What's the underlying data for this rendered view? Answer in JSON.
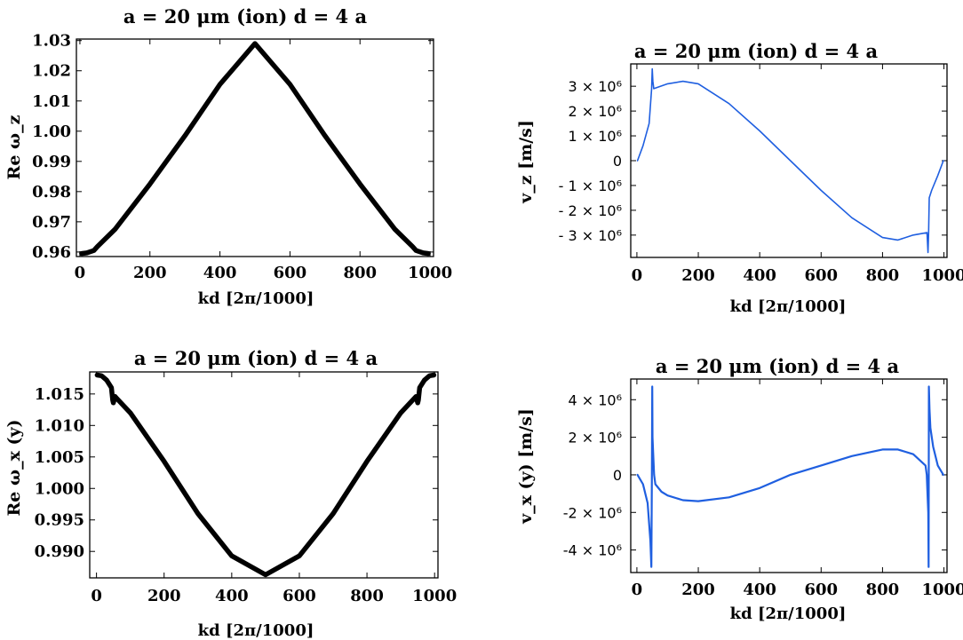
{
  "chart_data": [
    {
      "id": "p1",
      "type": "line",
      "title": "a = 20 μm (ion) d = 4 a",
      "xlabel": "kd [2π/1000]",
      "ylabel": "Re ω_z",
      "xlim": [
        -10,
        1010
      ],
      "ylim": [
        0.9585,
        1.0305
      ],
      "xticks": [
        0,
        200,
        400,
        600,
        800,
        1000
      ],
      "xtick_labels": [
        "0",
        "200",
        "400",
        "600",
        "800",
        "1000"
      ],
      "yticks": [
        0.96,
        0.97,
        0.98,
        0.99,
        1.0,
        1.01,
        1.02,
        1.03
      ],
      "ytick_labels": [
        "0.96",
        "0.97",
        "0.98",
        "0.99",
        "1.00",
        "1.01",
        "1.02",
        "1.03"
      ],
      "color": "#000000",
      "series": [
        {
          "name": "Re ω_z",
          "x": [
            5,
            20,
            40,
            50,
            100,
            200,
            300,
            400,
            500,
            600,
            700,
            800,
            900,
            950,
            960,
            980,
            995
          ],
          "values": [
            0.9595,
            0.9597,
            0.9605,
            0.9618,
            0.9675,
            0.9825,
            0.9985,
            1.0155,
            1.029,
            1.0155,
            0.9985,
            0.9825,
            0.9675,
            0.9618,
            0.9605,
            0.9597,
            0.9595
          ]
        }
      ]
    },
    {
      "id": "p2",
      "type": "line",
      "title": "a = 20 μm (ion) d = 4 a",
      "xlabel": "kd [2π/1000]",
      "ylabel": "v_z  [m/s]",
      "xlim": [
        -20,
        1010
      ],
      "ylim": [
        -3900000.0,
        3900000.0
      ],
      "xticks": [
        0,
        200,
        400,
        600,
        800,
        1000
      ],
      "xtick_labels": [
        "0",
        "200",
        "400",
        "600",
        "800",
        "1000"
      ],
      "yticks": [
        3000000.0,
        2000000.0,
        1000000.0,
        0,
        -1000000.0,
        -2000000.0,
        -3000000.0
      ],
      "ytick_labels": [
        "3 × 10⁶",
        "2 × 10⁶",
        "1 × 10⁶",
        "0",
        "- 1 × 10⁶",
        "- 2 × 10⁶",
        "- 3 × 10⁶"
      ],
      "color": "#1f5fe0",
      "series": [
        {
          "name": "v_z",
          "x": [
            2,
            20,
            40,
            48,
            50,
            52,
            55,
            100,
            150,
            200,
            300,
            400,
            500,
            600,
            700,
            800,
            850,
            900,
            945,
            948,
            950,
            952,
            960,
            980,
            998
          ],
          "values": [
            0,
            600000.0,
            1500000.0,
            2900000.0,
            3700000.0,
            3200000.0,
            2900000.0,
            3100000.0,
            3200000.0,
            3100000.0,
            2300000.0,
            1200000.0,
            0,
            -1200000.0,
            -2300000.0,
            -3100000.0,
            -3200000.0,
            -3000000.0,
            -2900000.0,
            -3700000.0,
            -2900000.0,
            -1500000.0,
            -1200000.0,
            -600000.0,
            0
          ]
        }
      ]
    },
    {
      "id": "p3",
      "type": "line",
      "title": "a = 20 μm (ion) d = 4 a",
      "xlabel": "kd [2π/1000]",
      "ylabel": "Re ω_x (y)",
      "xlim": [
        -20,
        1010
      ],
      "ylim": [
        0.9858,
        1.0185
      ],
      "xticks": [
        0,
        200,
        400,
        600,
        800,
        1000
      ],
      "xtick_labels": [
        "0",
        "200",
        "400",
        "600",
        "800",
        "1000"
      ],
      "yticks": [
        1.015,
        1.01,
        1.005,
        1.0,
        0.995,
        0.99
      ],
      "ytick_labels": [
        "1.015",
        "1.010",
        "1.005",
        "1.000",
        "0.995",
        "0.990"
      ],
      "color": "#000000",
      "series": [
        {
          "name": "Re ω_x(y)",
          "x": [
            2,
            15,
            30,
            44,
            48,
            50,
            52,
            55,
            60,
            100,
            200,
            300,
            400,
            500,
            600,
            700,
            800,
            900,
            940,
            945,
            948,
            950,
            952,
            956,
            970,
            985,
            998
          ],
          "values": [
            1.018,
            1.0179,
            1.0172,
            1.016,
            1.014,
            1.0136,
            1.014,
            1.0146,
            1.0143,
            1.012,
            1.0043,
            0.996,
            0.9893,
            0.9863,
            0.9893,
            0.996,
            1.0043,
            1.012,
            1.0143,
            1.0146,
            1.014,
            1.0136,
            1.014,
            1.016,
            1.0172,
            1.0179,
            1.018
          ]
        }
      ]
    },
    {
      "id": "p4",
      "type": "line",
      "title": "a = 20 μm (ion) d = 4 a",
      "xlabel": "kd [2π/1000]",
      "ylabel": "v_x (y)  [m/s]",
      "xlim": [
        -20,
        1010
      ],
      "ylim": [
        -5200000.0,
        5100000.0
      ],
      "xticks": [
        0,
        200,
        400,
        600,
        800,
        1000
      ],
      "xtick_labels": [
        "0",
        "200",
        "400",
        "600",
        "800",
        "1000"
      ],
      "yticks": [
        4000000.0,
        2000000.0,
        0,
        -2000000.0,
        -4000000.0
      ],
      "ytick_labels": [
        "4 × 10⁶",
        "2 × 10⁶",
        "0",
        "-2 × 10⁶",
        "-4 × 10⁶"
      ],
      "color": "#1f5fe0",
      "series": [
        {
          "name": "v_x(y)",
          "x": [
            2,
            20,
            35,
            44,
            47,
            49,
            50,
            51,
            53,
            56,
            60,
            80,
            100,
            150,
            200,
            300,
            400,
            500,
            600,
            700,
            800,
            850,
            900,
            940,
            944,
            947,
            949,
            950,
            951,
            953,
            956,
            965,
            980,
            998
          ],
          "values": [
            0,
            -500000.0,
            -1500000.0,
            -3500000.0,
            -4900000.0,
            0,
            4700000.0,
            2000000.0,
            1200000.0,
            0,
            -500000.0,
            -900000.0,
            -1100000.0,
            -1350000.0,
            -1400000.0,
            -1200000.0,
            -700000.0,
            0,
            500000.0,
            1000000.0,
            1350000.0,
            1350000.0,
            1100000.0,
            500000.0,
            0,
            -1200000.0,
            -2000000.0,
            -4900000.0,
            4700000.0,
            3500000.0,
            2500000.0,
            1500000.0,
            500000.0,
            0
          ]
        }
      ]
    }
  ]
}
